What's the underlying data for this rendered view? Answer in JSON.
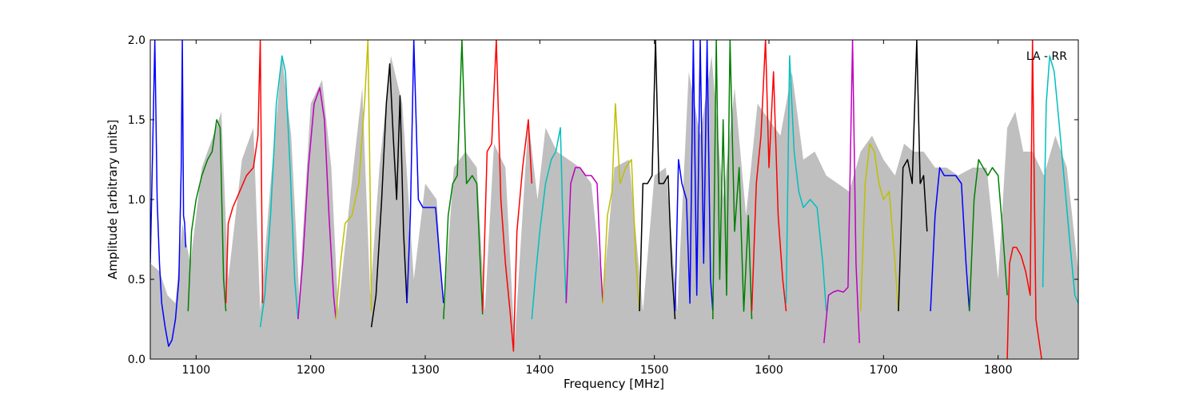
{
  "chart_data": {
    "type": "line",
    "xlabel": "Frequency [MHz]",
    "ylabel": "Amplitude [arbitrary units]",
    "annotation": "LA - RR",
    "xlim": [
      1060,
      1870
    ],
    "ylim": [
      0.0,
      2.0
    ],
    "xticks": [
      1100,
      1200,
      1300,
      1400,
      1500,
      1600,
      1700,
      1800
    ],
    "xtick_labels": [
      "1100",
      "1200",
      "1300",
      "1400",
      "1500",
      "1600",
      "1700",
      "1800"
    ],
    "yticks": [
      0.0,
      0.5,
      1.0,
      1.5,
      2.0
    ],
    "ytick_labels": [
      "0.0",
      "0.5",
      "1.0",
      "1.5",
      "2.0"
    ],
    "grid": false,
    "background_envelope": {
      "color": "#bfbfbf",
      "x": [
        1060,
        1068,
        1075,
        1082,
        1088,
        1095,
        1105,
        1115,
        1122,
        1128,
        1140,
        1150,
        1156,
        1165,
        1175,
        1183,
        1190,
        1200,
        1210,
        1218,
        1224,
        1235,
        1245,
        1252,
        1260,
        1270,
        1280,
        1290,
        1300,
        1310,
        1316,
        1325,
        1335,
        1345,
        1352,
        1360,
        1370,
        1378,
        1390,
        1398,
        1405,
        1415,
        1425,
        1435,
        1445,
        1455,
        1465,
        1478,
        1490,
        1500,
        1510,
        1520,
        1530,
        1540,
        1550,
        1560,
        1570,
        1580,
        1590,
        1600,
        1610,
        1620,
        1630,
        1640,
        1650,
        1660,
        1670,
        1680,
        1690,
        1700,
        1710,
        1718,
        1726,
        1735,
        1745,
        1755,
        1765,
        1778,
        1790,
        1800,
        1808,
        1815,
        1822,
        1830,
        1840,
        1850,
        1860,
        1870
      ],
      "y": [
        0.6,
        0.55,
        0.4,
        0.35,
        0.85,
        0.6,
        1.2,
        1.4,
        1.55,
        0.5,
        1.25,
        1.45,
        0.3,
        1.1,
        1.9,
        1.4,
        0.4,
        1.6,
        1.75,
        1.2,
        0.3,
        1.05,
        1.7,
        0.4,
        1.2,
        1.9,
        1.6,
        0.5,
        1.1,
        1.0,
        0.3,
        1.2,
        1.3,
        1.2,
        0.3,
        1.35,
        1.2,
        0.1,
        1.5,
        1.0,
        1.45,
        1.3,
        1.25,
        1.2,
        1.1,
        0.4,
        1.2,
        1.25,
        0.3,
        1.15,
        1.2,
        0.3,
        1.8,
        1.4,
        1.9,
        1.0,
        1.7,
        0.9,
        1.6,
        1.5,
        1.4,
        1.8,
        1.25,
        1.3,
        1.15,
        1.1,
        1.05,
        1.3,
        1.4,
        1.25,
        1.15,
        1.35,
        1.3,
        1.3,
        1.2,
        1.2,
        1.15,
        1.2,
        1.2,
        0.5,
        1.45,
        1.55,
        1.3,
        1.3,
        1.15,
        1.4,
        1.2,
        0.55
      ]
    },
    "series": [
      {
        "color": "#0000ff",
        "x": [
          1060,
          1062,
          1064,
          1066,
          1068,
          1070,
          1073,
          1076,
          1079,
          1082,
          1085,
          1087,
          1088,
          1089,
          1090,
          1091
        ],
        "y": [
          0.6,
          1.3,
          2.0,
          1.0,
          0.6,
          0.35,
          0.2,
          0.08,
          0.12,
          0.25,
          0.5,
          1.2,
          2.0,
          0.9,
          0.85,
          0.7
        ]
      },
      {
        "color": "#008000",
        "x": [
          1093,
          1096,
          1100,
          1105,
          1110,
          1114,
          1118,
          1121,
          1124,
          1126
        ],
        "y": [
          0.3,
          0.8,
          1.0,
          1.15,
          1.25,
          1.3,
          1.5,
          1.45,
          0.5,
          0.3
        ]
      },
      {
        "color": "#ff0000",
        "x": [
          1126,
          1128,
          1132,
          1138,
          1144,
          1150,
          1154,
          1156,
          1158
        ],
        "y": [
          0.35,
          0.85,
          0.95,
          1.05,
          1.15,
          1.2,
          1.4,
          2.0,
          0.35
        ]
      },
      {
        "color": "#00bfbf",
        "x": [
          1156,
          1160,
          1165,
          1170,
          1175,
          1178,
          1182,
          1186,
          1189
        ],
        "y": [
          0.2,
          0.4,
          0.9,
          1.6,
          1.9,
          1.8,
          1.2,
          0.5,
          0.25
        ]
      },
      {
        "color": "#bf00bf",
        "x": [
          1189,
          1193,
          1198,
          1203,
          1208,
          1212,
          1216,
          1220,
          1222
        ],
        "y": [
          0.25,
          0.6,
          1.2,
          1.6,
          1.7,
          1.5,
          0.9,
          0.4,
          0.25
        ]
      },
      {
        "color": "#bfbf00",
        "x": [
          1222,
          1226,
          1230,
          1236,
          1242,
          1247,
          1250,
          1252,
          1253
        ],
        "y": [
          0.25,
          0.6,
          0.85,
          0.9,
          1.1,
          1.6,
          2.0,
          1.0,
          0.3
        ]
      },
      {
        "color": "#000000",
        "x": [
          1253,
          1257,
          1262,
          1266,
          1269,
          1272,
          1275,
          1278,
          1281,
          1284
        ],
        "y": [
          0.2,
          0.4,
          1.0,
          1.6,
          1.85,
          1.4,
          1.0,
          1.65,
          0.8,
          0.35
        ]
      },
      {
        "color": "#0000ff",
        "x": [
          1284,
          1287,
          1290,
          1294,
          1298,
          1303,
          1309,
          1313,
          1316
        ],
        "y": [
          0.35,
          0.9,
          2.0,
          1.0,
          0.95,
          0.95,
          0.95,
          0.6,
          0.35
        ]
      },
      {
        "color": "#008000",
        "x": [
          1316,
          1320,
          1324,
          1328,
          1332,
          1336,
          1341,
          1345,
          1348,
          1350
        ],
        "y": [
          0.25,
          0.9,
          1.1,
          1.15,
          2.0,
          1.1,
          1.15,
          1.1,
          0.6,
          0.28
        ]
      },
      {
        "color": "#ff0000",
        "x": [
          1350,
          1354,
          1358,
          1362,
          1366,
          1370,
          1374,
          1377,
          1380,
          1385,
          1390,
          1393
        ],
        "y": [
          0.3,
          1.3,
          1.35,
          2.0,
          1.0,
          0.6,
          0.3,
          0.05,
          0.8,
          1.2,
          1.5,
          1.1
        ]
      },
      {
        "color": "#00bfbf",
        "x": [
          1393,
          1396,
          1400,
          1405,
          1410,
          1414,
          1418,
          1420,
          1423
        ],
        "y": [
          0.25,
          0.5,
          0.8,
          1.1,
          1.25,
          1.3,
          1.45,
          0.9,
          0.35
        ]
      },
      {
        "color": "#bf00bf",
        "x": [
          1423,
          1427,
          1431,
          1435,
          1440,
          1445,
          1450,
          1453,
          1455
        ],
        "y": [
          0.35,
          1.1,
          1.2,
          1.2,
          1.15,
          1.15,
          1.1,
          0.6,
          0.35
        ]
      },
      {
        "color": "#bfbf00",
        "x": [
          1455,
          1459,
          1463,
          1466,
          1470,
          1475,
          1480,
          1484,
          1487
        ],
        "y": [
          0.35,
          0.9,
          1.05,
          1.6,
          1.1,
          1.2,
          1.25,
          0.6,
          0.3
        ]
      },
      {
        "color": "#000000",
        "x": [
          1487,
          1490,
          1494,
          1498,
          1501,
          1504,
          1508,
          1512,
          1515,
          1518
        ],
        "y": [
          0.3,
          1.1,
          1.1,
          1.15,
          2.0,
          1.1,
          1.1,
          1.15,
          0.6,
          0.25
        ]
      },
      {
        "color": "#0000ff",
        "x": [
          1518,
          1521,
          1524,
          1528,
          1531,
          1534,
          1537,
          1540,
          1543,
          1546,
          1549,
          1551
        ],
        "y": [
          0.3,
          1.25,
          1.1,
          1.0,
          0.35,
          2.0,
          0.4,
          2.0,
          0.6,
          2.0,
          0.5,
          0.3
        ]
      },
      {
        "color": "#008000",
        "x": [
          1551,
          1554,
          1557,
          1560,
          1563,
          1566,
          1570,
          1574,
          1578,
          1582,
          1585
        ],
        "y": [
          0.25,
          2.0,
          0.5,
          1.5,
          0.4,
          2.0,
          0.8,
          1.2,
          0.3,
          0.9,
          0.25
        ]
      },
      {
        "color": "#ff0000",
        "x": [
          1585,
          1589,
          1593,
          1597,
          1600,
          1604,
          1608,
          1612,
          1615
        ],
        "y": [
          0.3,
          1.1,
          1.4,
          2.0,
          1.2,
          1.8,
          0.9,
          0.5,
          0.3
        ]
      },
      {
        "color": "#00bfbf",
        "x": [
          1615,
          1618,
          1622,
          1626,
          1630,
          1636,
          1642,
          1647,
          1650
        ],
        "y": [
          0.35,
          1.9,
          1.3,
          1.05,
          0.95,
          1.0,
          0.95,
          0.6,
          0.3
        ]
      },
      {
        "color": "#bf00bf",
        "x": [
          1648,
          1652,
          1656,
          1660,
          1665,
          1669,
          1673,
          1676,
          1679
        ],
        "y": [
          0.1,
          0.4,
          0.42,
          0.43,
          0.42,
          0.45,
          2.0,
          0.6,
          0.1
        ]
      },
      {
        "color": "#bfbf00",
        "x": [
          1680,
          1684,
          1688,
          1692,
          1696,
          1700,
          1705,
          1710,
          1713
        ],
        "y": [
          0.3,
          1.1,
          1.35,
          1.3,
          1.1,
          1.0,
          1.05,
          0.6,
          0.3
        ]
      },
      {
        "color": "#000000",
        "x": [
          1713,
          1717,
          1721,
          1725,
          1729,
          1732,
          1735,
          1738
        ],
        "y": [
          0.3,
          1.2,
          1.25,
          1.1,
          2.0,
          1.1,
          1.15,
          0.8
        ]
      },
      {
        "color": "#0000ff",
        "x": [
          1741,
          1745,
          1749,
          1753,
          1758,
          1763,
          1768,
          1772,
          1775
        ],
        "y": [
          0.3,
          0.9,
          1.2,
          1.15,
          1.15,
          1.15,
          1.1,
          0.6,
          0.3
        ]
      },
      {
        "color": "#008000",
        "x": [
          1775,
          1779,
          1783,
          1787,
          1791,
          1795,
          1800,
          1804,
          1808
        ],
        "y": [
          0.3,
          1.0,
          1.25,
          1.2,
          1.15,
          1.2,
          1.15,
          0.8,
          0.4
        ]
      },
      {
        "color": "#ff0000",
        "x": [
          1808,
          1810,
          1813,
          1816,
          1820,
          1824,
          1828,
          1830,
          1833,
          1836,
          1838
        ],
        "y": [
          0.0,
          0.6,
          0.7,
          0.7,
          0.65,
          0.55,
          0.4,
          2.0,
          0.25,
          0.1,
          0.0
        ]
      },
      {
        "color": "#00bfbf",
        "x": [
          1839,
          1842,
          1845,
          1849,
          1853,
          1858,
          1863,
          1867,
          1870
        ],
        "y": [
          0.45,
          1.6,
          1.9,
          1.8,
          1.5,
          1.1,
          0.7,
          0.4,
          0.35
        ]
      }
    ]
  }
}
